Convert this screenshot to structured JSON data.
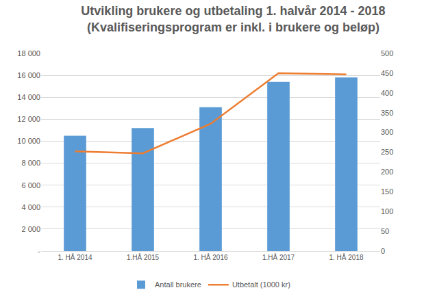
{
  "chart_data": {
    "type": "bar",
    "title": [
      "Utvikling brukere og utbetaling 1. halvår 2014 - 2018",
      "(Kvalifiseringsprogram er inkl. i brukere og beløp)"
    ],
    "categories": [
      "1. HÅ 2014",
      "1.HÅ 2015",
      "1. HÅ 2016",
      "1.HÅ 2017",
      "1. HÅ 2018"
    ],
    "series": [
      {
        "name": "Antall brukere",
        "type": "bar",
        "color": "#5b9bd5",
        "values": [
          10500,
          11200,
          13100,
          15400,
          15800
        ]
      },
      {
        "name": "Utbetalt (1000 kr)",
        "type": "line",
        "axis": "y2",
        "color": "#ed7d31",
        "values": [
          252,
          247,
          322,
          450,
          447
        ]
      }
    ],
    "ylim": [
      0,
      18000
    ],
    "yticks": [
      {
        "value": 0,
        "label": "-"
      },
      {
        "value": 2000,
        "label": "2 000"
      },
      {
        "value": 4000,
        "label": "4 000"
      },
      {
        "value": 6000,
        "label": "6 000"
      },
      {
        "value": 8000,
        "label": "8 000"
      },
      {
        "value": 10000,
        "label": "10 000"
      },
      {
        "value": 12000,
        "label": "12 000"
      },
      {
        "value": 14000,
        "label": "14 000"
      },
      {
        "value": 16000,
        "label": "16 000"
      },
      {
        "value": 18000,
        "label": "18 000"
      }
    ],
    "y2lim": [
      0,
      500
    ],
    "y2ticks": [
      0,
      50,
      100,
      150,
      200,
      250,
      300,
      350,
      400,
      450,
      500
    ],
    "grid": true,
    "legend": "bottom"
  }
}
